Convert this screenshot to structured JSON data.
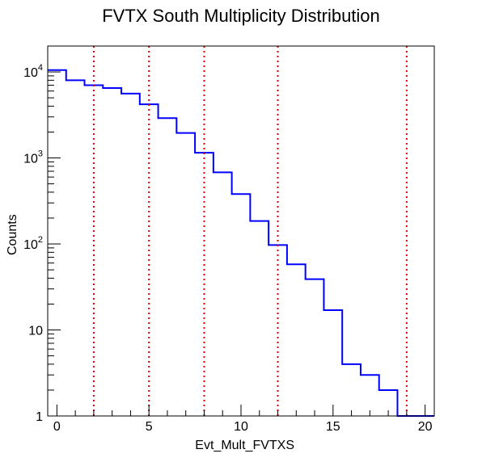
{
  "chart_data": {
    "type": "step-histogram",
    "title": "FVTX South Multiplicity Distribution",
    "xlabel": "Evt_Mult_FVTXS",
    "ylabel": "Counts",
    "xlim": [
      -0.5,
      20.5
    ],
    "ylim": [
      1,
      20000
    ],
    "yscale": "log",
    "grid": false,
    "x_ticks": [
      0,
      5,
      10,
      15,
      20
    ],
    "y_ticks": [
      {
        "value": 1,
        "base": "1",
        "exp": ""
      },
      {
        "value": 10,
        "base": "10",
        "exp": ""
      },
      {
        "value": 100,
        "base": "10",
        "exp": "2"
      },
      {
        "value": 1000,
        "base": "10",
        "exp": "3"
      },
      {
        "value": 10000,
        "base": "10",
        "exp": "4"
      }
    ],
    "series": [
      {
        "color": "#0000ff",
        "bin_edges": [
          -0.5,
          0.5,
          1.5,
          2.5,
          3.5,
          4.5,
          5.5,
          6.5,
          7.5,
          8.5,
          9.5,
          10.5,
          11.5,
          12.5,
          13.5,
          14.5,
          15.5,
          16.5,
          17.5,
          18.5,
          19.5,
          20.5
        ],
        "values": [
          10500,
          8000,
          7000,
          6500,
          5600,
          4200,
          2900,
          1950,
          1150,
          680,
          380,
          185,
          97,
          58,
          39,
          17,
          4,
          3,
          2,
          0,
          0
        ]
      }
    ],
    "vertical_lines": {
      "color": "#dd0000",
      "style": "dotted",
      "x": [
        2,
        5,
        8,
        12,
        19
      ]
    }
  }
}
